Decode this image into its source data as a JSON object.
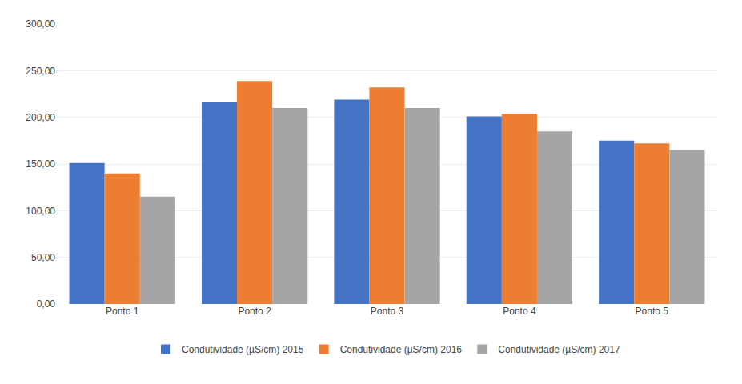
{
  "chart_data": {
    "type": "bar",
    "categories": [
      "Ponto 1",
      "Ponto 2",
      "Ponto 3",
      "Ponto 4",
      "Ponto 5"
    ],
    "series": [
      {
        "name": "Condutividade (µS/cm) 2015",
        "color": "#4472C4",
        "values": [
          151.0,
          216.0,
          219.0,
          201.0,
          175.0
        ]
      },
      {
        "name": "Condutividade (µS/cm) 2016",
        "color": "#ED7D31",
        "values": [
          140.0,
          239.0,
          232.0,
          204.0,
          172.0
        ]
      },
      {
        "name": "Condutividade (µS/cm) 2017",
        "color": "#A5A5A5",
        "values": [
          115.0,
          210.0,
          210.0,
          185.0,
          165.0
        ]
      }
    ],
    "ylim": [
      0,
      300
    ],
    "yticks": [
      {
        "value": 0,
        "label": "0,00"
      },
      {
        "value": 50,
        "label": "50,00"
      },
      {
        "value": 100,
        "label": "100,00"
      },
      {
        "value": 150,
        "label": "150,00"
      },
      {
        "value": 200,
        "label": "200,00"
      },
      {
        "value": 250,
        "label": "250,00"
      },
      {
        "value": 300,
        "label": "300,00"
      }
    ],
    "grid": true,
    "legend": "bottom"
  }
}
